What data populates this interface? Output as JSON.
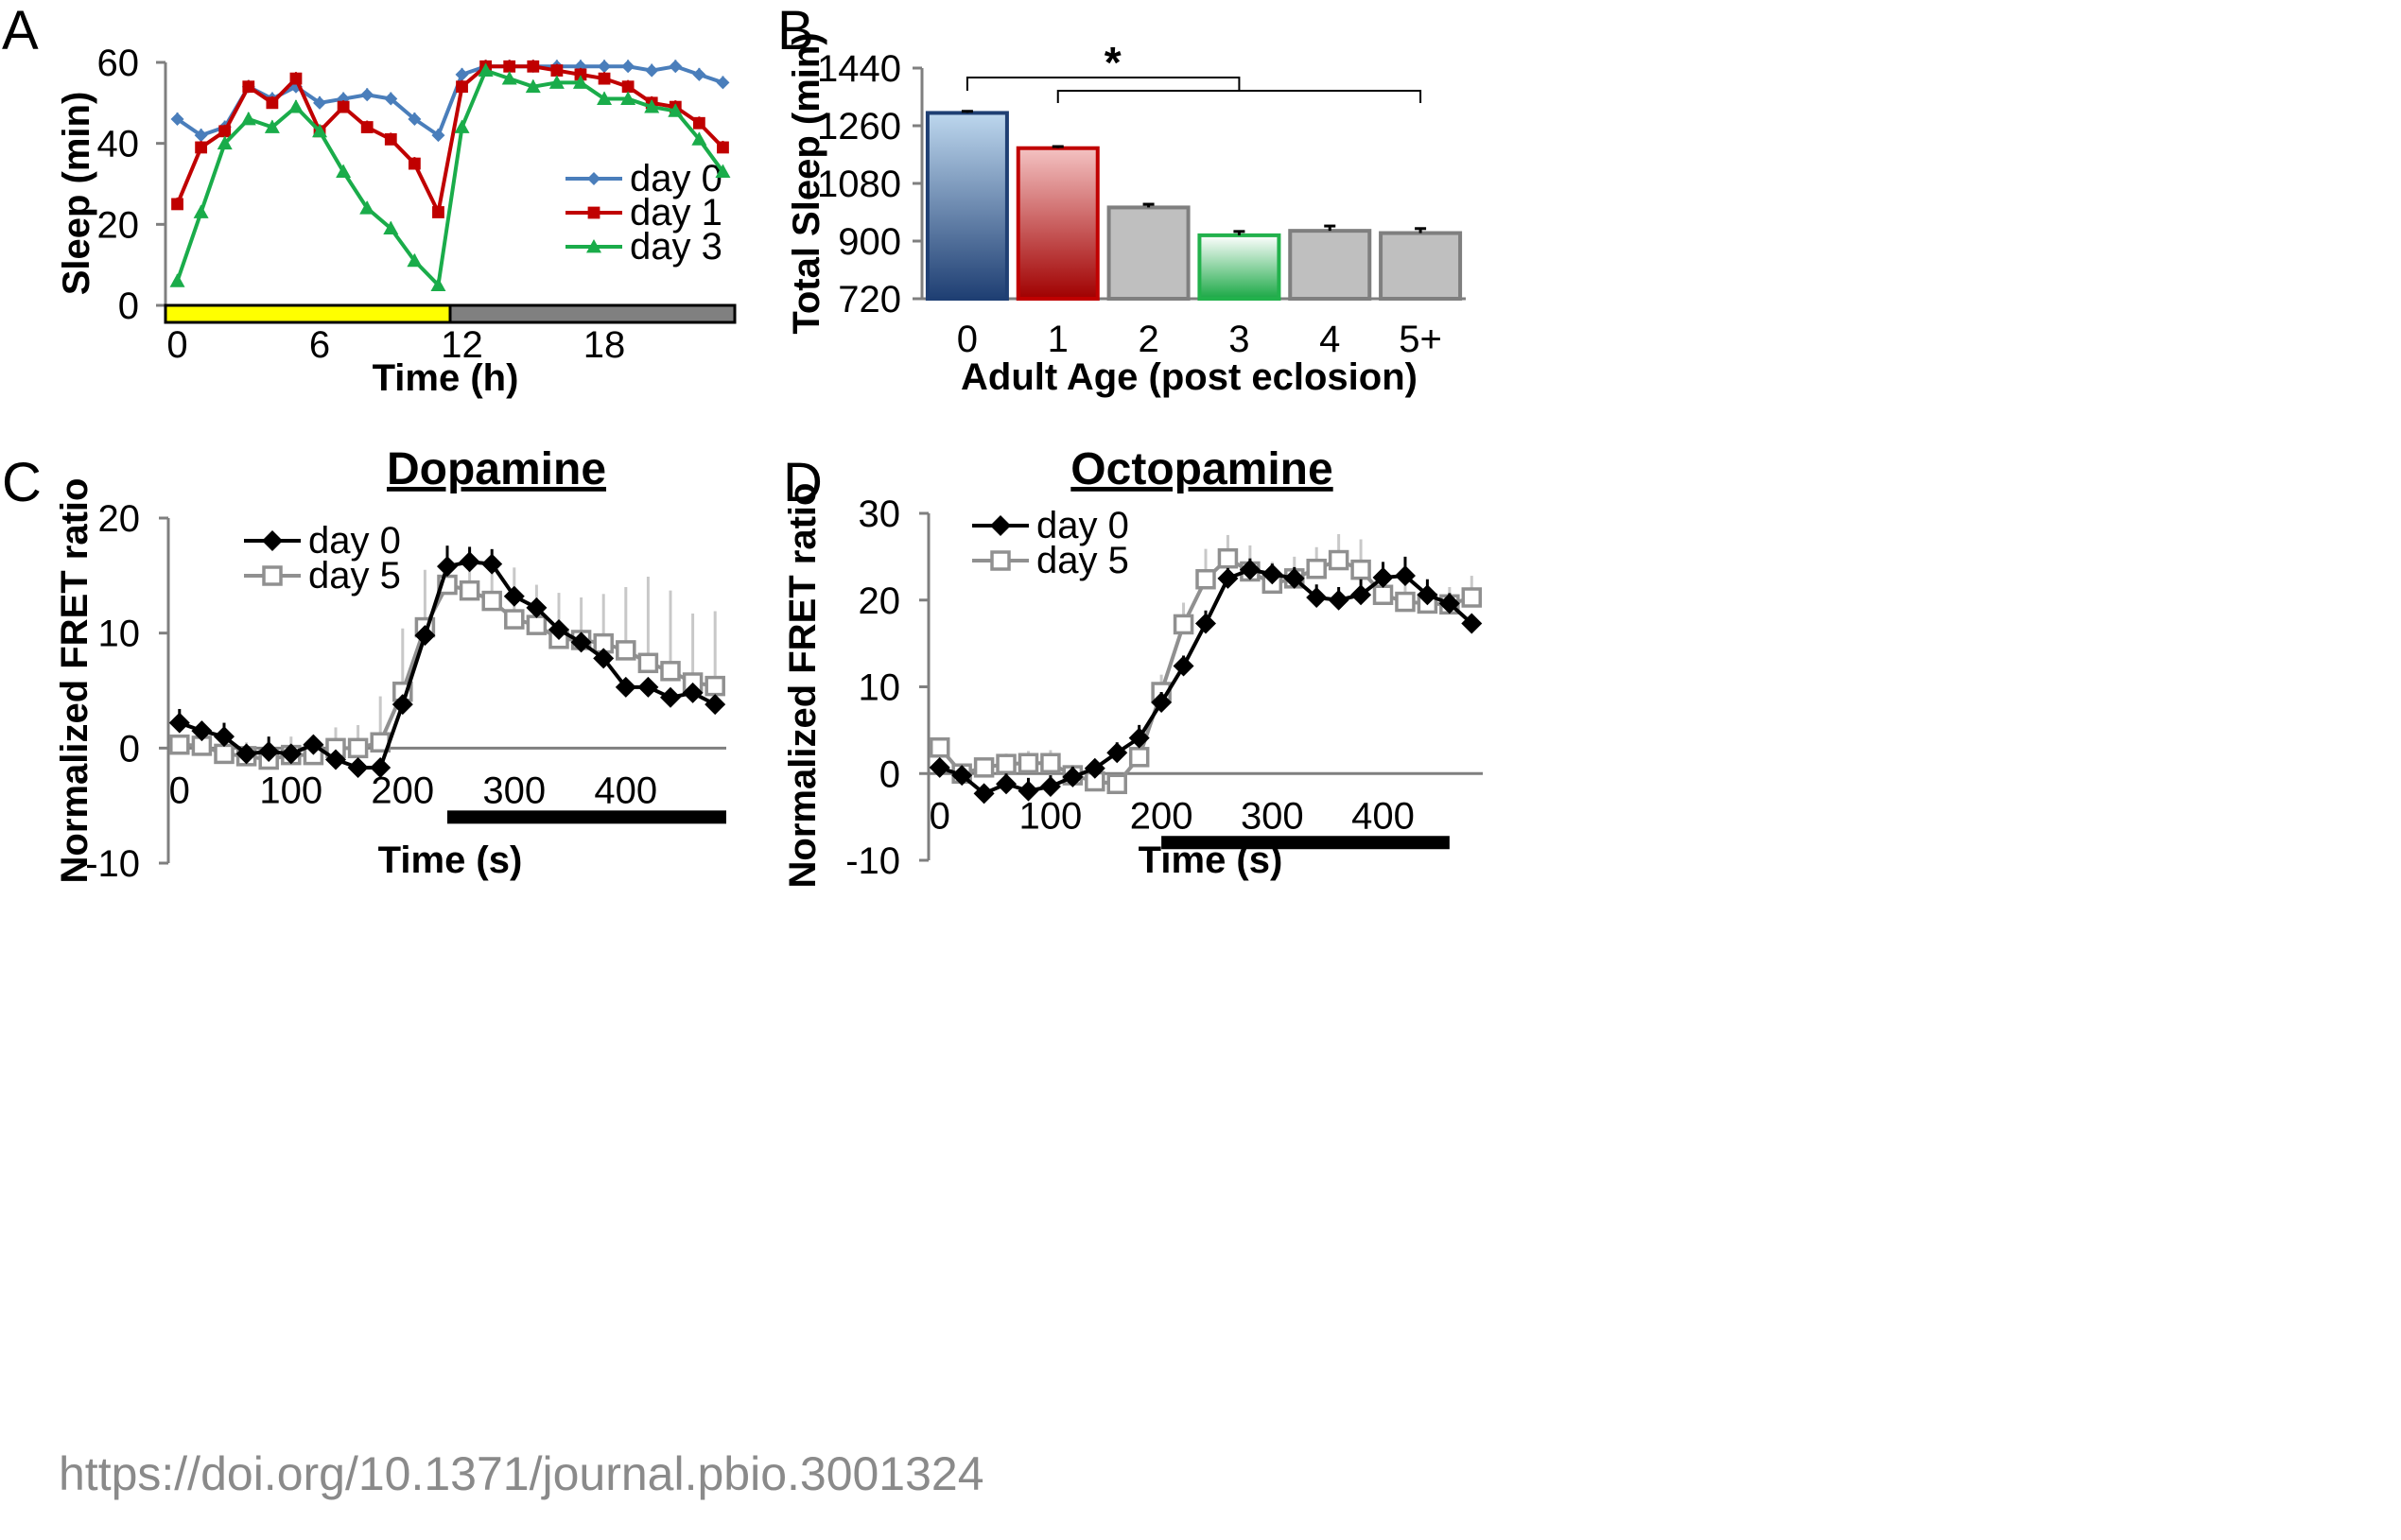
{
  "source": "https://doi.org/10.1371/journal.pbio.3001324",
  "chart_data": [
    {
      "panel": "A",
      "type": "line",
      "title": "",
      "xlabel": "Time (h)",
      "ylabel": "Sleep (min)",
      "xlim": [
        -0.5,
        23.5
      ],
      "ylim": [
        0,
        60
      ],
      "xticks": [
        0,
        6,
        12,
        18
      ],
      "yticks": [
        0,
        20,
        40,
        60
      ],
      "x": [
        0,
        1,
        2,
        3,
        4,
        5,
        6,
        7,
        8,
        9,
        10,
        11,
        12,
        13,
        14,
        15,
        16,
        17,
        18,
        19,
        20,
        21,
        22,
        23
      ],
      "series": [
        {
          "name": "day 0",
          "color": "#4a7ebb",
          "marker": "diamond",
          "values": [
            46,
            42,
            44,
            54,
            51,
            54,
            50,
            51,
            52,
            51,
            46,
            42,
            57,
            59,
            59,
            59,
            59,
            59,
            59,
            59,
            58,
            59,
            57,
            55
          ]
        },
        {
          "name": "day 1",
          "color": "#c00000",
          "marker": "square",
          "values": [
            25,
            39,
            43,
            54,
            50,
            56,
            43,
            49,
            44,
            41,
            35,
            23,
            54,
            59,
            59,
            59,
            58,
            57,
            56,
            54,
            50,
            49,
            45,
            39
          ]
        },
        {
          "name": "day 3",
          "color": "#1aac4a",
          "marker": "triangle",
          "values": [
            6,
            23,
            40,
            46,
            44,
            49,
            43,
            33,
            24,
            19,
            11,
            5,
            44,
            58,
            56,
            54,
            55,
            55,
            51,
            51,
            49,
            48,
            41,
            33
          ]
        }
      ],
      "light_bar": [
        {
          "from": 0,
          "to": 12,
          "color": "#ffff00"
        },
        {
          "from": 12,
          "to": 24,
          "color": "#808080"
        }
      ],
      "legend": "right"
    },
    {
      "panel": "B",
      "type": "bar",
      "title": "",
      "xlabel": "Adult Age (post eclosion)",
      "ylabel": "Total Sleep (min)",
      "ylim": [
        720,
        1440
      ],
      "yticks": [
        720,
        900,
        1080,
        1260,
        1440
      ],
      "categories": [
        "0",
        "1",
        "2",
        "3",
        "4",
        "5+"
      ],
      "values": [
        1300,
        1190,
        1005,
        918,
        932,
        925
      ],
      "errors": [
        5,
        5,
        10,
        12,
        15,
        14
      ],
      "bar_colors": [
        "#2f528f",
        "#c00000",
        "#bfbfbf",
        "#22b14c",
        "#bfbfbf",
        "#bfbfbf"
      ],
      "significance": "*"
    },
    {
      "panel": "C",
      "type": "line",
      "title": "Dopamine",
      "xlabel": "Time (s)",
      "ylabel": "Normalized FRET ratio",
      "xlim": [
        -10,
        490
      ],
      "ylim": [
        -10,
        20
      ],
      "xticks": [
        0,
        100,
        200,
        300,
        400
      ],
      "yticks": [
        -10,
        0,
        10,
        20
      ],
      "x": [
        0,
        20,
        40,
        60,
        80,
        100,
        120,
        140,
        160,
        180,
        200,
        220,
        240,
        260,
        280,
        300,
        320,
        340,
        360,
        380,
        400,
        420,
        440,
        460,
        480
      ],
      "series": [
        {
          "name": "day 0",
          "color": "#000000",
          "marker": "diamond",
          "values": [
            2.2,
            1.5,
            1.0,
            -0.5,
            -0.3,
            -0.5,
            0.3,
            -1.0,
            -1.7,
            -1.7,
            3.8,
            9.8,
            15.8,
            16.2,
            16.0,
            13.2,
            12.2,
            10.3,
            9.2,
            7.8,
            5.3,
            5.3,
            4.4,
            4.8,
            3.8
          ],
          "errors": [
            1.2,
            0.8,
            1.2,
            0.6,
            1.3,
            0.8,
            0.8,
            0.5,
            0.6,
            0.5,
            0.8,
            0.8,
            1.8,
            1.3,
            1.3,
            0.8,
            0.8,
            0.6,
            0.5,
            0.6,
            0.5,
            0.5,
            0.5,
            0.5,
            0.5
          ]
        },
        {
          "name": "day 5",
          "color": "#909090",
          "marker": "square-open",
          "values": [
            0.3,
            0.2,
            -0.5,
            -0.7,
            -1.0,
            -0.6,
            -0.6,
            0.0,
            0.0,
            0.5,
            4.9,
            10.5,
            14.2,
            13.7,
            12.8,
            11.2,
            10.7,
            9.5,
            9.4,
            9.1,
            8.5,
            7.4,
            6.7,
            5.7,
            5.4
          ],
          "errors": [
            0.5,
            0.8,
            1.0,
            1.2,
            1.4,
            1.6,
            1.7,
            1.8,
            2.0,
            4.0,
            5.5,
            5.0,
            3.0,
            3.5,
            3.0,
            4.5,
            3.5,
            4.0,
            3.7,
            4.3,
            5.5,
            7.5,
            7.0,
            6.0,
            6.5
          ]
        }
      ],
      "stimulus_bar": {
        "from": 240,
        "to": 490
      },
      "legend": "top-left"
    },
    {
      "panel": "D",
      "type": "line",
      "title": "Octopamine",
      "xlabel": "Time (s)",
      "ylabel": "Normalized FRET ratio",
      "xlim": [
        -10,
        490
      ],
      "ylim": [
        -10,
        30
      ],
      "xticks": [
        0,
        100,
        200,
        300,
        400
      ],
      "yticks": [
        -10,
        0,
        10,
        20,
        30
      ],
      "x": [
        0,
        20,
        40,
        60,
        80,
        100,
        120,
        140,
        160,
        180,
        200,
        220,
        240,
        260,
        280,
        300,
        320,
        340,
        360,
        380,
        400,
        420,
        440,
        460,
        480
      ],
      "series": [
        {
          "name": "day 0",
          "color": "#000000",
          "marker": "diamond",
          "values": [
            0.7,
            -0.2,
            -2.3,
            -1.2,
            -2.0,
            -1.5,
            -0.4,
            0.6,
            2.4,
            4.1,
            8.2,
            12.4,
            17.3,
            22.5,
            23.5,
            23.0,
            22.5,
            20.3,
            20.0,
            20.6,
            22.6,
            22.8,
            20.6,
            19.6,
            17.3
          ],
          "errors": [
            0.8,
            0.8,
            1.0,
            1.2,
            1.5,
            1.3,
            1.2,
            1.0,
            1.2,
            1.5,
            1.2,
            1.2,
            1.5,
            1.2,
            1.3,
            1.2,
            1.3,
            1.5,
            1.5,
            1.8,
            1.8,
            2.2,
            1.8,
            1.2,
            1.0
          ]
        },
        {
          "name": "day 5",
          "color": "#909090",
          "marker": "square-open",
          "values": [
            3.0,
            0.0,
            0.7,
            1.1,
            1.2,
            1.2,
            -0.2,
            -0.9,
            -1.2,
            1.9,
            9.4,
            17.2,
            22.4,
            24.8,
            23.3,
            21.9,
            22.5,
            23.6,
            24.6,
            23.5,
            20.6,
            19.8,
            19.6,
            19.5,
            20.3
          ],
          "errors": [
            0.5,
            0.8,
            1.0,
            1.2,
            1.4,
            1.5,
            1.2,
            1.0,
            1.0,
            1.5,
            2.0,
            2.5,
            3.5,
            2.7,
            3.0,
            2.5,
            2.5,
            2.5,
            3.0,
            3.5,
            2.5,
            2.0,
            2.0,
            2.0,
            2.5
          ]
        }
      ],
      "stimulus_bar": {
        "from": 200,
        "to": 460
      },
      "legend": "top-left"
    }
  ],
  "panels": {
    "a": {
      "letter": "A"
    },
    "b": {
      "letter": "B"
    },
    "c": {
      "letter": "C"
    },
    "d": {
      "letter": "D"
    }
  }
}
